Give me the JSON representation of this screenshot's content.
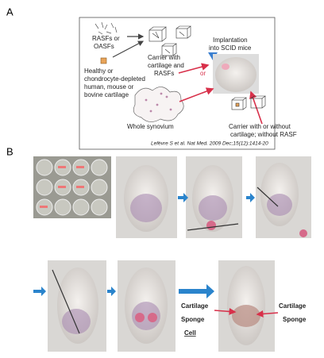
{
  "panel_a": {
    "label": "A",
    "source_lines": [
      "RASFs or",
      "OASFs"
    ],
    "cartilage_lines": [
      "Healthy or",
      "chondrocyte-depleted",
      "human, mouse or",
      "bovine cartilage"
    ],
    "carrier_lines": [
      "Carrier with",
      "cartilage and",
      "RASFs"
    ],
    "implant_lines": [
      "Implantation",
      "into SCID mice"
    ],
    "or": "or",
    "synovium": "Whole synovium",
    "control_lines": [
      "Carrier with or without",
      "cartilage; without RASF"
    ],
    "citation": "Lefèvre S et al. Nat Med. 2009 Dec;15(12):1414-20"
  },
  "panel_b": {
    "label": "B",
    "left_labels": [
      "Cartilage",
      "Sponge",
      "Cell"
    ],
    "right_labels": [
      "Cartilage",
      "Sponge"
    ]
  }
}
